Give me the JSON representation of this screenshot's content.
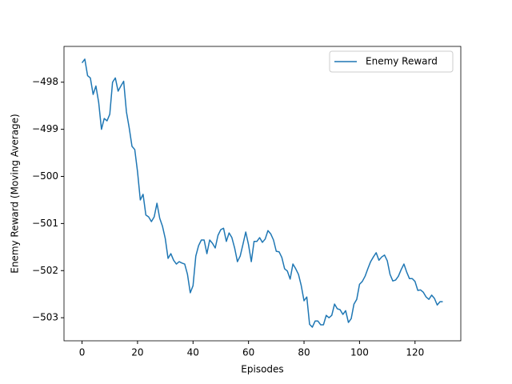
{
  "chart_data": {
    "type": "line",
    "xlabel": "Episodes",
    "ylabel": "Enemy Reward (Moving Average)",
    "x": [
      0,
      1,
      2,
      3,
      4,
      5,
      6,
      7,
      8,
      9,
      10,
      11,
      12,
      13,
      14,
      15,
      16,
      17,
      18,
      19,
      20,
      21,
      22,
      23,
      24,
      25,
      26,
      27,
      28,
      29,
      30,
      31,
      32,
      33,
      34,
      35,
      36,
      37,
      38,
      39,
      40,
      41,
      42,
      43,
      44,
      45,
      46,
      47,
      48,
      49,
      50,
      51,
      52,
      53,
      54,
      55,
      56,
      57,
      58,
      59,
      60,
      61,
      62,
      63,
      64,
      65,
      66,
      67,
      68,
      69,
      70,
      71,
      72,
      73,
      74,
      75,
      76,
      77,
      78,
      79,
      80,
      81,
      82,
      83,
      84,
      85,
      86,
      87,
      88,
      89,
      90,
      91,
      92,
      93,
      94,
      95,
      96,
      97,
      98,
      99,
      100,
      101,
      102,
      103,
      104,
      105,
      106,
      107,
      108,
      109,
      110,
      111,
      112,
      113,
      114,
      115,
      116,
      117,
      118,
      119,
      120,
      121,
      122,
      123,
      124,
      125,
      126,
      127,
      128,
      129,
      130
    ],
    "series": [
      {
        "name": "Enemy Reward",
        "color": "#1f77b4",
        "values": [
          -497.59,
          -497.51,
          -497.86,
          -497.91,
          -498.26,
          -498.08,
          -498.43,
          -499.0,
          -498.77,
          -498.82,
          -498.68,
          -498.0,
          -497.91,
          -498.19,
          -498.08,
          -497.98,
          -498.63,
          -498.97,
          -499.36,
          -499.43,
          -499.9,
          -500.5,
          -500.38,
          -500.82,
          -500.86,
          -500.96,
          -500.86,
          -500.57,
          -500.89,
          -501.06,
          -501.32,
          -501.74,
          -501.64,
          -501.78,
          -501.86,
          -501.81,
          -501.84,
          -501.86,
          -502.08,
          -502.47,
          -502.32,
          -501.69,
          -501.47,
          -501.35,
          -501.35,
          -501.64,
          -501.35,
          -501.42,
          -501.52,
          -501.25,
          -501.13,
          -501.1,
          -501.38,
          -501.2,
          -501.3,
          -501.52,
          -501.81,
          -501.69,
          -501.44,
          -501.18,
          -501.45,
          -501.81,
          -501.38,
          -501.38,
          -501.3,
          -501.4,
          -501.33,
          -501.15,
          -501.22,
          -501.35,
          -501.59,
          -501.6,
          -501.72,
          -501.96,
          -502.01,
          -502.18,
          -501.86,
          -501.96,
          -502.08,
          -502.32,
          -502.64,
          -502.56,
          -503.14,
          -503.2,
          -503.07,
          -503.07,
          -503.15,
          -503.15,
          -502.95,
          -503.0,
          -502.95,
          -502.71,
          -502.81,
          -502.83,
          -502.93,
          -502.85,
          -503.1,
          -503.02,
          -502.71,
          -502.61,
          -502.29,
          -502.23,
          -502.12,
          -501.96,
          -501.81,
          -501.71,
          -501.62,
          -501.78,
          -501.71,
          -501.67,
          -501.79,
          -502.08,
          -502.22,
          -502.2,
          -502.12,
          -501.98,
          -501.86,
          -502.03,
          -502.17,
          -502.17,
          -502.23,
          -502.42,
          -502.41,
          -502.46,
          -502.56,
          -502.61,
          -502.52,
          -502.59,
          -502.73,
          -502.66,
          -502.66
        ]
      }
    ],
    "xlim": [
      -6.5,
      136.5
    ],
    "ylim": [
      -503.49,
      -497.24
    ],
    "xticks": [
      0,
      20,
      40,
      60,
      80,
      100,
      120
    ],
    "yticks": [
      {
        "value": -503,
        "label": "−503"
      },
      {
        "value": -502,
        "label": "−502"
      },
      {
        "value": -501,
        "label": "−501"
      },
      {
        "value": -500,
        "label": "−500"
      },
      {
        "value": -499,
        "label": "−499"
      },
      {
        "value": -498,
        "label": "−498"
      }
    ],
    "legend": "upper right"
  }
}
